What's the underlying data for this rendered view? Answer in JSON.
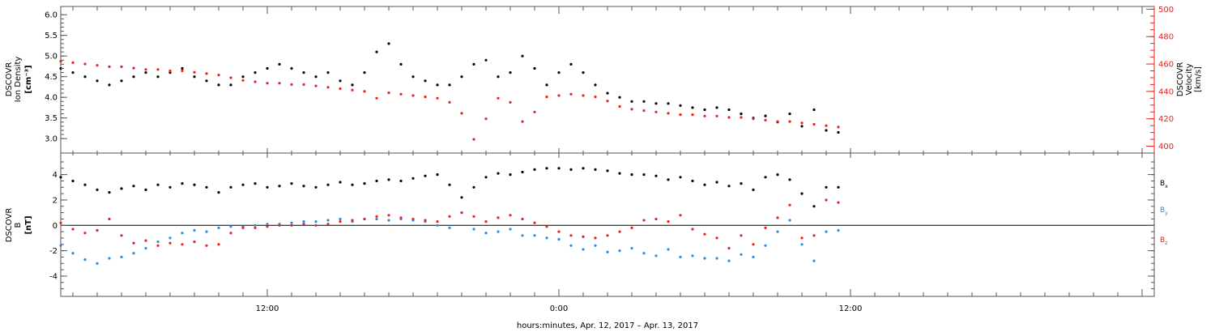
{
  "chart_data": [
    {
      "type": "scatter",
      "panel": "plasma",
      "x_unit": "hours since Apr 12 2017 00:00",
      "xlim": [
        3.5,
        48.5
      ],
      "ylabel_left": [
        "DSCOVR",
        "Ion Density",
        "[cm⁻³]"
      ],
      "ylabel_right": [
        "DSCOVR",
        "Velocity",
        "[km/s]"
      ],
      "ylim_left": [
        2.65,
        6.2
      ],
      "ylim_right": [
        395,
        502
      ],
      "yticks_left": [
        "3.0",
        "3.5",
        "4.0",
        "4.5",
        "5.0",
        "5.5",
        "6.0"
      ],
      "yticks_right": [
        "400",
        "420",
        "440",
        "460",
        "480",
        "500"
      ],
      "series": [
        {
          "name": "Ion Density",
          "axis": "left",
          "color": "#000000",
          "x": [
            3.5,
            4.0,
            4.5,
            5.0,
            5.5,
            6.0,
            6.5,
            7.0,
            7.5,
            8.0,
            8.5,
            9.0,
            9.5,
            10.0,
            10.5,
            11.0,
            11.5,
            12.0,
            12.5,
            13.0,
            13.5,
            14.0,
            14.5,
            15.0,
            15.5,
            16.0,
            16.5,
            17.0,
            17.5,
            18.0,
            18.5,
            19.0,
            19.5,
            20.0,
            20.5,
            21.0,
            21.5,
            22.0,
            22.5,
            23.0,
            23.5,
            24.0,
            24.5,
            25.0,
            25.5,
            26.0,
            26.5,
            27.0,
            27.5,
            28.0,
            28.5,
            29.0,
            29.5,
            30.0,
            30.5,
            31.0,
            31.5,
            32.0,
            32.5,
            33.0,
            33.5,
            34.0,
            34.5,
            35.0,
            35.5
          ],
          "y": [
            4.7,
            4.6,
            4.5,
            4.4,
            4.3,
            4.4,
            4.5,
            4.6,
            4.5,
            4.6,
            4.7,
            4.5,
            4.4,
            4.3,
            4.3,
            4.5,
            4.6,
            4.7,
            4.8,
            4.7,
            4.6,
            4.5,
            4.6,
            4.4,
            4.3,
            4.6,
            5.1,
            5.3,
            4.8,
            4.5,
            4.4,
            4.3,
            4.3,
            4.5,
            4.8,
            4.9,
            4.5,
            4.6,
            5.0,
            4.7,
            4.3,
            4.6,
            4.8,
            4.6,
            4.3,
            4.1,
            4.0,
            3.9,
            3.9,
            3.85,
            3.85,
            3.8,
            3.75,
            3.7,
            3.75,
            3.7,
            3.6,
            3.5,
            3.55,
            3.4,
            3.6,
            3.3,
            3.7,
            3.2,
            3.15
          ]
        },
        {
          "name": "Velocity",
          "axis": "right",
          "color": "#e8221f",
          "x": [
            3.5,
            4.0,
            4.5,
            5.0,
            5.5,
            6.0,
            6.5,
            7.0,
            7.5,
            8.0,
            8.5,
            9.0,
            9.5,
            10.0,
            10.5,
            11.0,
            11.5,
            12.0,
            12.5,
            13.0,
            13.5,
            14.0,
            14.5,
            15.0,
            15.5,
            16.0,
            16.5,
            17.0,
            17.5,
            18.0,
            18.5,
            19.0,
            19.5,
            20.0,
            20.5,
            21.0,
            21.5,
            22.0,
            22.5,
            23.0,
            23.5,
            24.0,
            24.5,
            25.0,
            25.5,
            26.0,
            26.5,
            27.0,
            27.5,
            28.0,
            28.5,
            29.0,
            29.5,
            30.0,
            30.5,
            31.0,
            31.5,
            32.0,
            32.5,
            33.0,
            33.5,
            34.0,
            34.5,
            35.0,
            35.5
          ],
          "y": [
            462,
            461,
            460,
            459,
            458,
            458,
            457,
            456,
            456,
            455,
            455,
            454,
            453,
            452,
            450,
            448,
            447,
            446,
            446,
            445,
            445,
            444,
            443,
            442,
            441,
            440,
            435,
            439,
            438,
            437,
            436,
            435,
            432,
            424,
            405,
            420,
            435,
            432,
            418,
            425,
            436,
            437,
            438,
            437,
            436,
            433,
            429,
            427,
            426,
            425,
            424,
            423,
            423,
            422,
            422,
            421,
            421,
            420,
            419,
            418,
            418,
            417,
            416,
            415,
            414
          ]
        }
      ]
    },
    {
      "type": "scatter",
      "panel": "magnetic-field",
      "x_unit": "hours since Apr 12 2017 00:00",
      "xlim": [
        3.5,
        48.5
      ],
      "ylabel_left": [
        "DSCOVR",
        "B",
        "[nT]"
      ],
      "ylim": [
        -5.6,
        5.7
      ],
      "yticks": [
        "-4",
        "-2",
        "0",
        "2",
        "4"
      ],
      "zero_line": true,
      "legend_placement": "right",
      "series": [
        {
          "name": "Bx",
          "color": "#000000",
          "x": [
            3.5,
            4.0,
            4.5,
            5.0,
            5.5,
            6.0,
            6.5,
            7.0,
            7.5,
            8.0,
            8.5,
            9.0,
            9.5,
            10.0,
            10.5,
            11.0,
            11.5,
            12.0,
            12.5,
            13.0,
            13.5,
            14.0,
            14.5,
            15.0,
            15.5,
            16.0,
            16.5,
            17.0,
            17.5,
            18.0,
            18.5,
            19.0,
            19.5,
            20.0,
            20.5,
            21.0,
            21.5,
            22.0,
            22.5,
            23.0,
            23.5,
            24.0,
            24.5,
            25.0,
            25.5,
            26.0,
            26.5,
            27.0,
            27.5,
            28.0,
            28.5,
            29.0,
            29.5,
            30.0,
            30.5,
            31.0,
            31.5,
            32.0,
            32.5,
            33.0,
            33.5,
            34.0,
            34.5,
            35.0,
            35.5
          ],
          "y": [
            3.8,
            3.5,
            3.2,
            2.8,
            2.6,
            2.9,
            3.1,
            2.8,
            3.2,
            3.0,
            3.3,
            3.2,
            3.0,
            2.6,
            3.0,
            3.2,
            3.3,
            3.0,
            3.1,
            3.3,
            3.1,
            3.0,
            3.2,
            3.4,
            3.2,
            3.3,
            3.5,
            3.6,
            3.5,
            3.7,
            3.9,
            4.0,
            3.2,
            2.2,
            3.0,
            3.8,
            4.1,
            4.0,
            4.2,
            4.4,
            4.5,
            4.5,
            4.4,
            4.5,
            4.4,
            4.3,
            4.1,
            4.0,
            4.0,
            3.9,
            3.6,
            3.8,
            3.5,
            3.2,
            3.4,
            3.1,
            3.3,
            2.8,
            3.8,
            4.0,
            3.6,
            2.5,
            1.5,
            3.0,
            3.0
          ]
        },
        {
          "name": "By",
          "color": "#2b8be0",
          "x": [
            3.5,
            4.0,
            4.5,
            5.0,
            5.5,
            6.0,
            6.5,
            7.0,
            7.5,
            8.0,
            8.5,
            9.0,
            9.5,
            10.0,
            10.5,
            11.0,
            11.5,
            12.0,
            12.5,
            13.0,
            13.5,
            14.0,
            14.5,
            15.0,
            15.5,
            16.0,
            16.5,
            17.0,
            17.5,
            18.0,
            18.5,
            19.0,
            19.5,
            20.0,
            20.5,
            21.0,
            21.5,
            22.0,
            22.5,
            23.0,
            23.5,
            24.0,
            24.5,
            25.0,
            25.5,
            26.0,
            26.5,
            27.0,
            27.5,
            28.0,
            28.5,
            29.0,
            29.5,
            30.0,
            30.5,
            31.0,
            31.5,
            32.0,
            32.5,
            33.0,
            33.5,
            34.0,
            34.5,
            35.0,
            35.5
          ],
          "y": [
            -1.6,
            -2.2,
            -2.7,
            -3.0,
            -2.6,
            -2.5,
            -2.2,
            -1.8,
            -1.3,
            -1.0,
            -0.6,
            -0.4,
            -0.5,
            -0.2,
            -0.1,
            -0.1,
            0.0,
            0.1,
            0.1,
            0.2,
            0.3,
            0.3,
            0.4,
            0.5,
            0.3,
            0.5,
            0.5,
            0.4,
            0.5,
            0.4,
            0.3,
            0.0,
            -0.2,
            1.0,
            -0.3,
            -0.6,
            -0.5,
            -0.3,
            -0.8,
            -0.8,
            -1.0,
            -1.1,
            -1.6,
            -1.9,
            -1.6,
            -2.1,
            -2.0,
            -1.8,
            -2.2,
            -2.4,
            -1.9,
            -2.5,
            -2.4,
            -2.6,
            -2.6,
            -2.8,
            -2.3,
            -2.5,
            -1.6,
            -0.5,
            0.4,
            -1.5,
            -2.8,
            -0.5,
            -0.4
          ]
        },
        {
          "name": "Bz",
          "color": "#e8221f",
          "x": [
            3.5,
            4.0,
            4.5,
            5.0,
            5.5,
            6.0,
            6.5,
            7.0,
            7.5,
            8.0,
            8.5,
            9.0,
            9.5,
            10.0,
            10.5,
            11.0,
            11.5,
            12.0,
            12.5,
            13.0,
            13.5,
            14.0,
            14.5,
            15.0,
            15.5,
            16.0,
            16.5,
            17.0,
            17.5,
            18.0,
            18.5,
            19.0,
            19.5,
            20.0,
            20.5,
            21.0,
            21.5,
            22.0,
            22.5,
            23.0,
            23.5,
            24.0,
            24.5,
            25.0,
            25.5,
            26.0,
            26.5,
            27.0,
            27.5,
            28.0,
            28.5,
            29.0,
            29.5,
            30.0,
            30.5,
            31.0,
            31.5,
            32.0,
            32.5,
            33.0,
            33.5,
            34.0,
            34.5,
            35.0,
            35.5
          ],
          "y": [
            0.2,
            -0.3,
            -0.6,
            -0.4,
            0.5,
            -0.8,
            -1.4,
            -1.2,
            -1.6,
            -1.4,
            -1.5,
            -1.3,
            -1.6,
            -1.5,
            -0.6,
            -0.2,
            -0.2,
            -0.1,
            0.0,
            0.0,
            0.1,
            0.0,
            0.1,
            0.3,
            0.4,
            0.5,
            0.7,
            0.8,
            0.6,
            0.5,
            0.4,
            0.3,
            0.7,
            1.0,
            0.7,
            0.3,
            0.6,
            0.8,
            0.5,
            0.2,
            -0.1,
            -0.5,
            -0.8,
            -0.9,
            -1.0,
            -0.8,
            -0.5,
            -0.2,
            0.4,
            0.5,
            0.3,
            0.8,
            -0.3,
            -0.7,
            -1.0,
            -1.8,
            -0.8,
            -1.5,
            -0.2,
            0.6,
            1.6,
            -1.0,
            -0.8,
            2.0,
            1.8
          ]
        }
      ]
    }
  ],
  "x_axis": {
    "tick_labels": [
      "12:00",
      "0:00",
      "12:00"
    ],
    "title": "hours:minutes, Apr. 12, 2017 – Apr. 13, 2017"
  },
  "legend": {
    "bx": {
      "main": "B",
      "sub": "x"
    },
    "by": {
      "main": "B",
      "sub": "y"
    },
    "bz": {
      "main": "B",
      "sub": "z"
    }
  },
  "colors": {
    "black": "#000000",
    "red": "#e8221f",
    "blue": "#2b8be0",
    "axis": "#555555"
  }
}
